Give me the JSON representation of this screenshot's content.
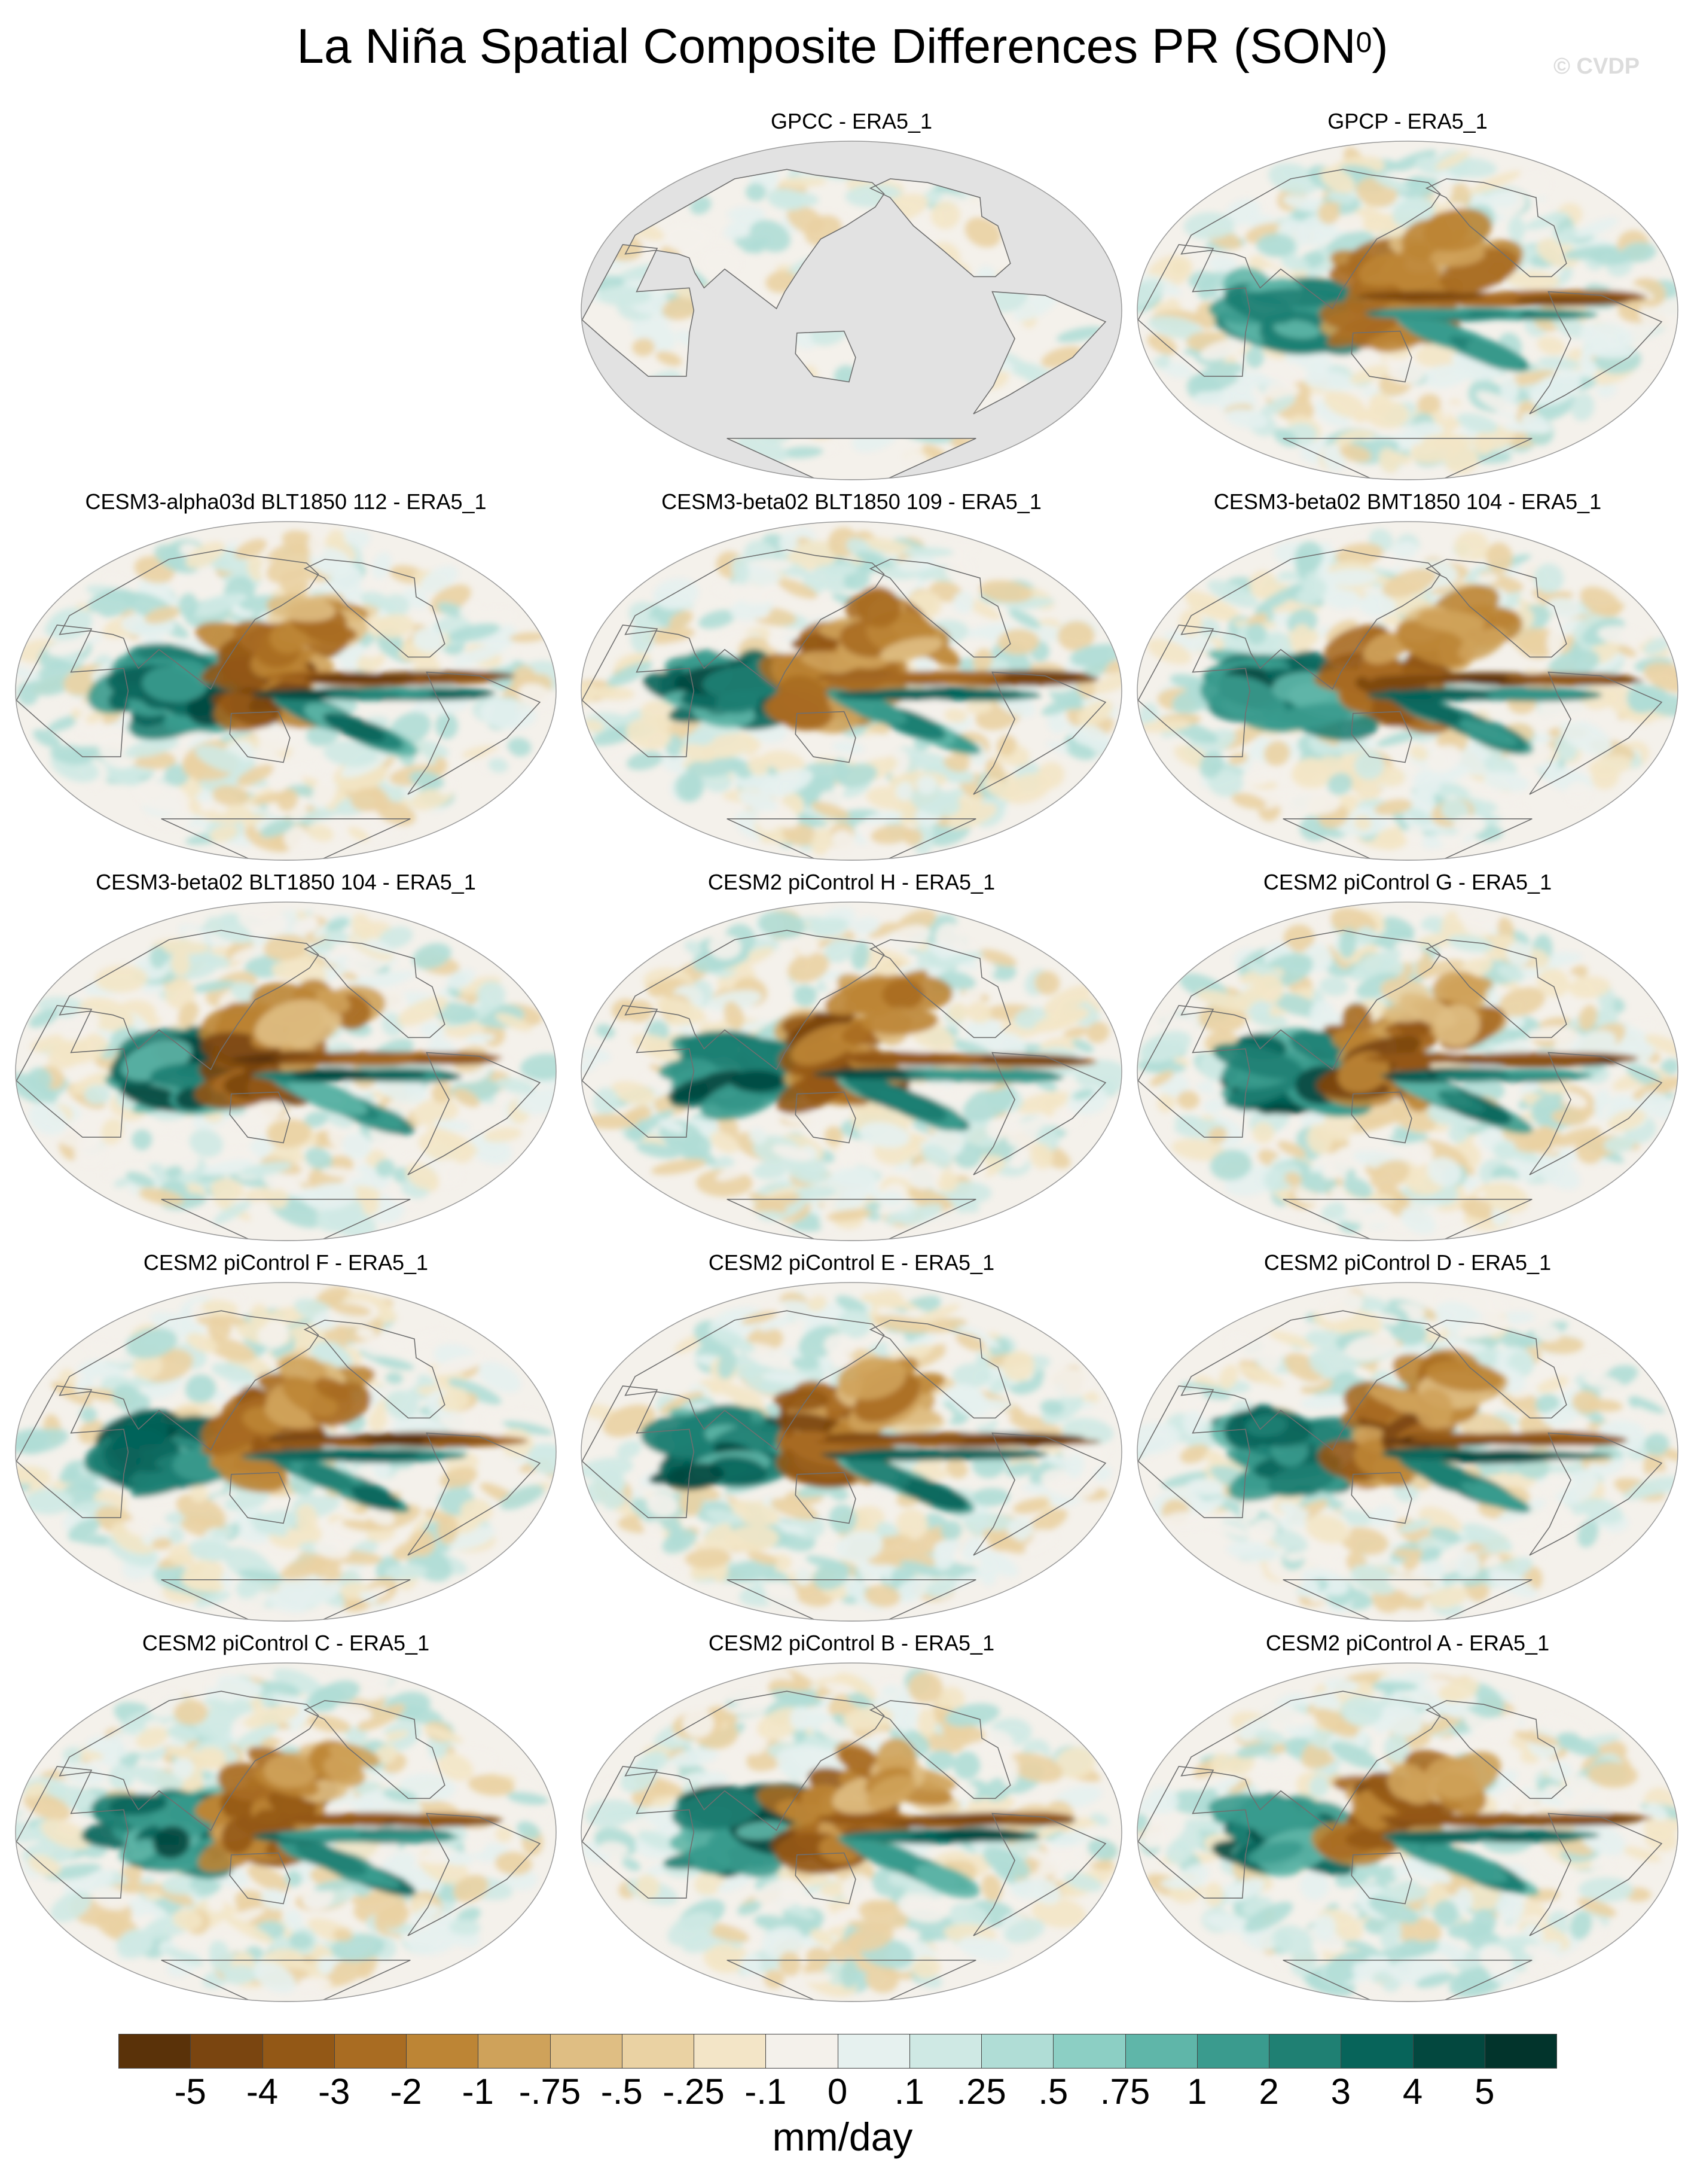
{
  "figure": {
    "title_main": "La Niña Spatial Composite Differences PR (SON",
    "title_sup": "0",
    "title_end": ")",
    "credit": "© CVDP"
  },
  "panels": [
    {
      "title": "GPCC - ERA5_1",
      "style": "gpcc",
      "seed": 3
    },
    {
      "title": "GPCP - ERA5_1",
      "style": "gpcp",
      "seed": 7
    },
    {
      "title": "CESM3-alpha03d BLT1850 112 - ERA5_1",
      "style": "model",
      "seed": 11
    },
    {
      "title": "CESM3-beta02 BLT1850 109 - ERA5_1",
      "style": "model",
      "seed": 13
    },
    {
      "title": "CESM3-beta02 BMT1850 104 - ERA5_1",
      "style": "model",
      "seed": 17
    },
    {
      "title": "CESM3-beta02 BLT1850 104 - ERA5_1",
      "style": "model",
      "seed": 19
    },
    {
      "title": "CESM2 piControl H - ERA5_1",
      "style": "model",
      "seed": 23
    },
    {
      "title": "CESM2 piControl G - ERA5_1",
      "style": "model",
      "seed": 29
    },
    {
      "title": "CESM2 piControl F - ERA5_1",
      "style": "model",
      "seed": 31
    },
    {
      "title": "CESM2 piControl E - ERA5_1",
      "style": "model",
      "seed": 37
    },
    {
      "title": "CESM2 piControl D - ERA5_1",
      "style": "model",
      "seed": 41
    },
    {
      "title": "CESM2 piControl C - ERA5_1",
      "style": "model",
      "seed": 43
    },
    {
      "title": "CESM2 piControl B - ERA5_1",
      "style": "model",
      "seed": 47
    },
    {
      "title": "CESM2 piControl A - ERA5_1",
      "style": "model",
      "seed": 53
    }
  ],
  "colorbar": {
    "units": "mm/day",
    "labels": [
      "-5",
      "-4",
      "-3",
      "-2",
      "-1",
      "-.75",
      "-.5",
      "-.25",
      "-.1",
      "0",
      ".1",
      ".25",
      ".5",
      ".75",
      "1",
      "2",
      "3",
      "4",
      "5"
    ],
    "colors": [
      "#5a3209",
      "#7a4510",
      "#935816",
      "#a96c22",
      "#bd8535",
      "#cfa25a",
      "#dfbe83",
      "#ead2a3",
      "#f3e5c7",
      "#f4f1eb",
      "#e6f1ef",
      "#cfe9e4",
      "#b0ddd6",
      "#8ccfc4",
      "#5fb6a9",
      "#3a9b8e",
      "#1f8073",
      "#07645a",
      "#03483f",
      "#02342c"
    ],
    "land_mask_color": "#e2e2e2"
  }
}
